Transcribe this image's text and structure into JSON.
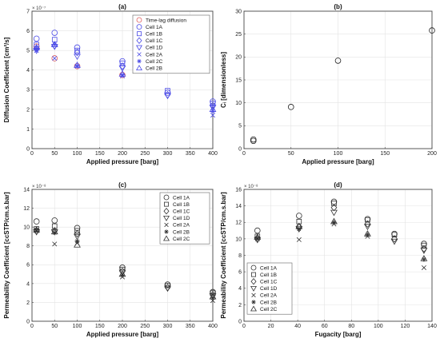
{
  "chart_data": [
    {
      "id": "a",
      "type": "scatter",
      "title": "(a)",
      "xlabel": "Applied pressure [barg]",
      "ylabel": "Diffusion Coefficient [cm²/s]",
      "exponent_label": "× 10⁻⁷",
      "xlim": [
        0,
        400
      ],
      "ylim": [
        0,
        7
      ],
      "xticks": [
        0,
        50,
        100,
        150,
        200,
        250,
        300,
        350,
        400
      ],
      "yticks": [
        0,
        1,
        2,
        3,
        4,
        5,
        6,
        7
      ],
      "grid": true,
      "legend_position": "top-right",
      "series": [
        {
          "name": "Time-lag diffusion",
          "marker": "circle",
          "color": "#e06060",
          "x": [
            10,
            50,
            100,
            200
          ],
          "y": [
            5.2,
            4.6,
            4.2,
            3.75
          ]
        },
        {
          "name": "Cell 1A",
          "marker": "circle",
          "color": "#4a4ae6",
          "x": [
            10,
            50,
            100,
            200,
            300,
            400
          ],
          "y": [
            5.6,
            5.9,
            5.15,
            4.45,
            2.85,
            2.4
          ]
        },
        {
          "name": "Cell 1B",
          "marker": "square",
          "color": "#4a4ae6",
          "x": [
            10,
            50,
            100,
            200,
            300,
            400
          ],
          "y": [
            5.3,
            5.55,
            5.0,
            4.35,
            2.95,
            2.3
          ]
        },
        {
          "name": "Cell 1C",
          "marker": "diamond",
          "color": "#4a4ae6",
          "x": [
            10,
            50,
            100,
            200,
            300,
            400
          ],
          "y": [
            5.1,
            5.25,
            4.9,
            4.2,
            2.75,
            2.2
          ]
        },
        {
          "name": "Cell 1D",
          "marker": "triangle-down",
          "color": "#4a4ae6",
          "x": [
            10,
            50,
            100,
            200,
            300,
            400
          ],
          "y": [
            5.0,
            5.2,
            4.7,
            4.1,
            2.7,
            2.1
          ]
        },
        {
          "name": "Cell 2A",
          "marker": "x",
          "color": "#4a4ae6",
          "x": [
            10,
            50,
            100,
            200,
            400
          ],
          "y": [
            5.0,
            4.6,
            4.2,
            3.7,
            1.7
          ]
        },
        {
          "name": "Cell 2C",
          "marker": "asterisk",
          "color": "#4a4ae6",
          "x": [
            10,
            50,
            100,
            200,
            400
          ],
          "y": [
            5.1,
            5.3,
            4.2,
            3.75,
            1.9
          ]
        },
        {
          "name": "Cell 2B",
          "marker": "triangle-up",
          "color": "#4a4ae6",
          "x": [
            10,
            50,
            100,
            200,
            400
          ],
          "y": [
            5.15,
            5.3,
            4.25,
            3.8,
            2.0
          ]
        }
      ]
    },
    {
      "id": "b",
      "type": "scatter",
      "title": "(b)",
      "xlabel": "Applied pressure [barg]",
      "ylabel": "Cᵢ [dimensionless]",
      "xlim": [
        0,
        200
      ],
      "ylim": [
        0,
        30
      ],
      "xticks": [
        0,
        50,
        100,
        150,
        200
      ],
      "yticks": [
        0,
        5,
        10,
        15,
        20,
        25,
        30
      ],
      "grid": true,
      "series": [
        {
          "name": "",
          "marker": "circle",
          "color": "#222222",
          "x": [
            10,
            10,
            50,
            100,
            200
          ],
          "y": [
            1.7,
            2.0,
            9.1,
            19.2,
            25.8
          ]
        }
      ]
    },
    {
      "id": "c",
      "type": "scatter",
      "title": "(c)",
      "xlabel": "Applied pressure [barg]",
      "ylabel": "Permeability Coefficient [ccSTP/cm.s.bar]",
      "exponent_label": "× 10⁻⁸",
      "xlim": [
        0,
        400
      ],
      "ylim": [
        0,
        14
      ],
      "xticks": [
        0,
        50,
        100,
        150,
        200,
        250,
        300,
        350,
        400
      ],
      "yticks": [
        0,
        2,
        4,
        6,
        8,
        10,
        12,
        14
      ],
      "grid": true,
      "legend_position": "top-right",
      "series": [
        {
          "name": "Cell 1A",
          "marker": "circle",
          "color": "#333333",
          "x": [
            10,
            50,
            100,
            200,
            300,
            400
          ],
          "y": [
            10.6,
            10.7,
            9.9,
            5.7,
            3.9,
            3.1
          ]
        },
        {
          "name": "Cell 1B",
          "marker": "square",
          "color": "#333333",
          "x": [
            10,
            50,
            100,
            200,
            300,
            400
          ],
          "y": [
            9.8,
            10.1,
            9.6,
            5.5,
            3.8,
            3.0
          ]
        },
        {
          "name": "Cell 1C",
          "marker": "diamond",
          "color": "#333333",
          "x": [
            10,
            50,
            100,
            200,
            300,
            400
          ],
          "y": [
            9.6,
            9.6,
            9.3,
            5.3,
            3.6,
            2.8
          ]
        },
        {
          "name": "Cell 1D",
          "marker": "triangle-down",
          "color": "#333333",
          "x": [
            10,
            50,
            100,
            200,
            300,
            400
          ],
          "y": [
            9.5,
            9.5,
            9.0,
            5.2,
            3.5,
            2.7
          ]
        },
        {
          "name": "Cell 2A",
          "marker": "x",
          "color": "#333333",
          "x": [
            10,
            50,
            100,
            200,
            400
          ],
          "y": [
            9.6,
            8.2,
            8.3,
            4.7,
            2.2
          ]
        },
        {
          "name": "Cell 2B",
          "marker": "asterisk",
          "color": "#333333",
          "x": [
            10,
            50,
            100,
            200,
            400
          ],
          "y": [
            9.7,
            9.4,
            8.5,
            4.9,
            2.5
          ]
        },
        {
          "name": "Cell 2C",
          "marker": "triangle-up",
          "color": "#333333",
          "x": [
            10,
            50,
            100,
            200,
            400
          ],
          "y": [
            9.7,
            9.5,
            8.1,
            5.0,
            2.6
          ]
        }
      ]
    },
    {
      "id": "d",
      "type": "scatter",
      "title": "(d)",
      "xlabel": "Fugacity [barg]",
      "ylabel": "Permeability Coefficient [ccSTP/cm.s.bar]",
      "exponent_label": "× 10⁻⁸",
      "xlim": [
        0,
        140
      ],
      "ylim": [
        0,
        16
      ],
      "xticks": [
        0,
        20,
        40,
        60,
        80,
        100,
        120,
        140
      ],
      "yticks": [
        0,
        2,
        4,
        6,
        8,
        10,
        12,
        14,
        16
      ],
      "grid": true,
      "legend_position": "bottom-left",
      "series": [
        {
          "name": "Cell 1A",
          "marker": "circle",
          "color": "#333333",
          "x": [
            10,
            41,
            67,
            92,
            112,
            134
          ],
          "y": [
            11.0,
            12.8,
            14.5,
            12.4,
            10.6,
            9.4
          ]
        },
        {
          "name": "Cell 1B",
          "marker": "square",
          "color": "#333333",
          "x": [
            10,
            41,
            67,
            92,
            112,
            134
          ],
          "y": [
            10.3,
            12.1,
            14.3,
            12.3,
            10.5,
            9.2
          ]
        },
        {
          "name": "Cell 1C",
          "marker": "diamond",
          "color": "#333333",
          "x": [
            10,
            41,
            67,
            92,
            112,
            134
          ],
          "y": [
            10.0,
            11.5,
            13.8,
            11.8,
            10.0,
            8.8
          ]
        },
        {
          "name": "Cell 1D",
          "marker": "triangle-down",
          "color": "#333333",
          "x": [
            10,
            41,
            67,
            92,
            112,
            134
          ],
          "y": [
            9.9,
            11.2,
            13.2,
            11.5,
            9.7,
            8.6
          ]
        },
        {
          "name": "Cell 2A",
          "marker": "x",
          "color": "#333333",
          "x": [
            10,
            41,
            67,
            92,
            134
          ],
          "y": [
            10.0,
            9.9,
            11.8,
            10.3,
            6.5
          ]
        },
        {
          "name": "Cell 2B",
          "marker": "asterisk",
          "color": "#333333",
          "x": [
            10,
            41,
            67,
            92,
            134
          ],
          "y": [
            10.0,
            11.2,
            12.0,
            10.5,
            7.5
          ]
        },
        {
          "name": "Cell 2C",
          "marker": "triangle-up",
          "color": "#333333",
          "x": [
            10,
            41,
            67,
            92,
            134
          ],
          "y": [
            10.2,
            11.5,
            12.1,
            10.6,
            7.6
          ]
        }
      ]
    }
  ]
}
